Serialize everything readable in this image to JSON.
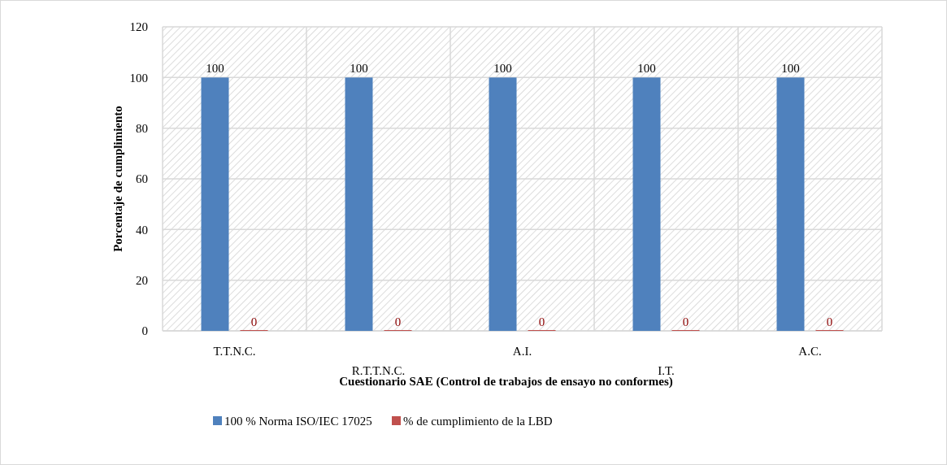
{
  "chart_data": {
    "type": "bar",
    "xlabel": "Cuestionario SAE (Control de trabajos de ensayo no conformes)",
    "ylabel": "Porcentaje de cumplimiento",
    "categories": [
      "T.T.N.C.",
      "R.T.T.N.C.",
      "A.I.",
      "I.T.",
      "A.C."
    ],
    "series": [
      {
        "name": "100 % Norma ISO/IEC 17025",
        "color": "#4f81bd",
        "values": [
          100,
          100,
          100,
          100,
          100
        ]
      },
      {
        "name": "% de cumplimiento de la LBD",
        "color": "#c0504d",
        "values": [
          0,
          0,
          0,
          0,
          0
        ]
      }
    ],
    "ylim": [
      0,
      120
    ],
    "yticks": [
      0,
      20,
      40,
      60,
      80,
      100,
      120
    ],
    "grid": true,
    "legend": "bottom",
    "data_labels": true
  }
}
